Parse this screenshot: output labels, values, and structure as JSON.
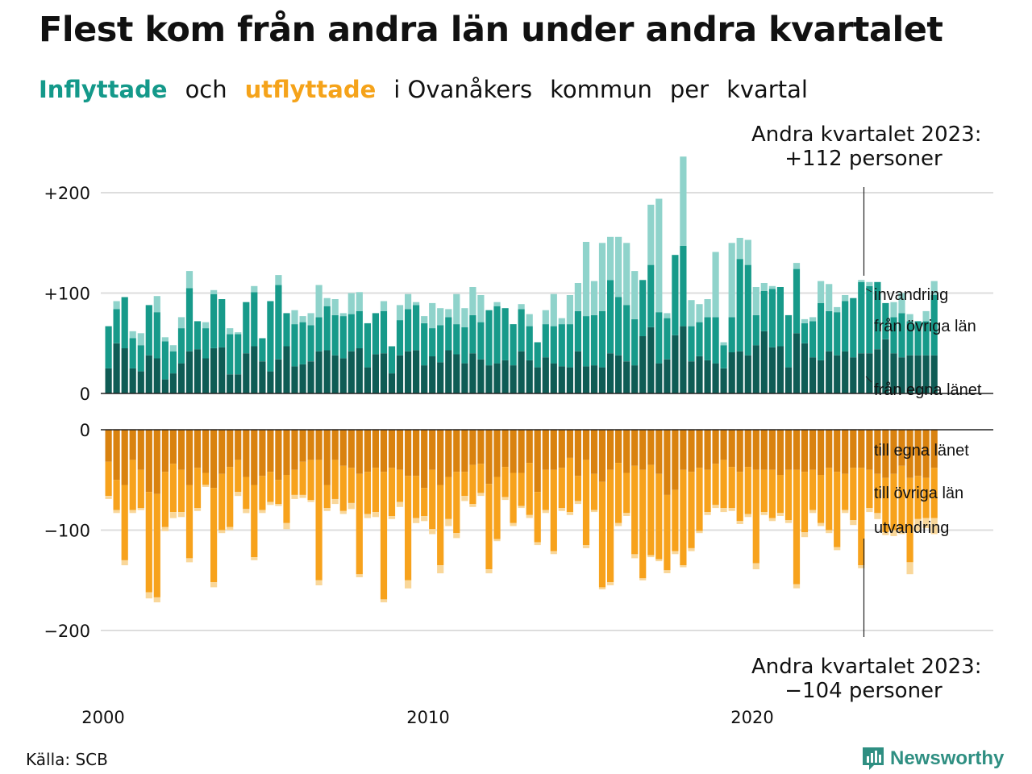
{
  "title": "Flest kom från andra län under andra kvartalet",
  "subtitle": {
    "part1": "Inflyttade",
    "part2": "och",
    "part3": "utflyttade",
    "part4": "i Ovanåkers",
    "part5": "kommun",
    "part6": "per",
    "part7": "kvartal"
  },
  "callout_top": {
    "line1": "Andra kvartalet 2023:",
    "line2": "+112 personer"
  },
  "callout_bottom": {
    "line1": "Andra kvartalet 2023:",
    "line2": "−104 personer"
  },
  "source": "Källa: SCB",
  "logo": {
    "text": "Newsworthy",
    "icon": "bar-chart-logo-icon"
  },
  "colors": {
    "in_local": "#0f5c55",
    "in_other": "#179a8a",
    "in_abroad": "#8fd3cb",
    "out_local": "#d9820f",
    "out_other": "#f7a21c",
    "out_abroad": "#f9d79a",
    "title_in": "#14998a",
    "title_out": "#f5a31a"
  },
  "chart_data": {
    "type": "bar",
    "stacked": true,
    "x_start": "2000 Q1",
    "x_end": "2023 Q2",
    "x_tick_labels": [
      "2000",
      "2010",
      "2020"
    ],
    "upper_panel": {
      "ylim": [
        0,
        210
      ],
      "y_tick_labels": [
        "0",
        "+100",
        "+200"
      ],
      "series_labels": [
        "invandring",
        "från övriga län",
        "från egna länet"
      ],
      "from_own_county": [
        25,
        50,
        45,
        25,
        22,
        38,
        35,
        14,
        20,
        30,
        42,
        44,
        35,
        45,
        46,
        19,
        19,
        40,
        47,
        32,
        22,
        34,
        47,
        27,
        29,
        32,
        42,
        43,
        38,
        35,
        42,
        45,
        26,
        39,
        40,
        20,
        38,
        42,
        43,
        28,
        37,
        31,
        43,
        39,
        30,
        40,
        34,
        28,
        30,
        33,
        28,
        42,
        33,
        26,
        36,
        30,
        27,
        26,
        42,
        27,
        28,
        26,
        40,
        38,
        32,
        28,
        57,
        66,
        30,
        34,
        58,
        67,
        32,
        37,
        33,
        30,
        25,
        41,
        42,
        38,
        48,
        62,
        46,
        47,
        26,
        60,
        50,
        36,
        33,
        42,
        38,
        42,
        36,
        40,
        40,
        44,
        54,
        40,
        36,
        38,
        38,
        38,
        38
      ],
      "from_other_counties": [
        42,
        34,
        51,
        30,
        26,
        50,
        46,
        38,
        22,
        35,
        63,
        28,
        30,
        54,
        48,
        40,
        40,
        51,
        54,
        23,
        70,
        74,
        33,
        42,
        42,
        36,
        34,
        44,
        40,
        42,
        37,
        37,
        44,
        41,
        42,
        27,
        35,
        42,
        45,
        42,
        28,
        37,
        33,
        30,
        36,
        38,
        37,
        55,
        57,
        52,
        41,
        42,
        34,
        25,
        33,
        37,
        42,
        43,
        40,
        50,
        50,
        56,
        73,
        58,
        56,
        46,
        56,
        62,
        51,
        41,
        80,
        80,
        35,
        34,
        43,
        46,
        23,
        35,
        92,
        90,
        30,
        40,
        58,
        59,
        52,
        64,
        20,
        36,
        57,
        40,
        43,
        50,
        59,
        71,
        67,
        67,
        36,
        36,
        44,
        34,
        34,
        34,
        60
      ],
      "immigration": [
        0,
        8,
        0,
        7,
        12,
        0,
        16,
        4,
        6,
        11,
        17,
        0,
        6,
        4,
        0,
        6,
        2,
        0,
        6,
        0,
        0,
        10,
        0,
        14,
        6,
        12,
        32,
        8,
        16,
        3,
        21,
        19,
        0,
        0,
        10,
        0,
        15,
        15,
        3,
        7,
        25,
        17,
        8,
        30,
        19,
        28,
        27,
        0,
        4,
        0,
        0,
        5,
        12,
        0,
        14,
        32,
        6,
        29,
        28,
        74,
        34,
        68,
        43,
        60,
        62,
        48,
        0,
        60,
        113,
        5,
        0,
        89,
        26,
        18,
        18,
        65,
        3,
        74,
        21,
        25,
        28,
        8,
        3,
        0,
        0,
        6,
        4,
        4,
        22,
        27,
        5,
        6,
        0,
        2,
        4,
        0,
        0,
        15,
        20,
        7,
        0,
        10,
        14
      ]
    },
    "lower_panel": {
      "ylim": [
        -210,
        0
      ],
      "y_tick_labels": [
        "0",
        "−100",
        "−200"
      ],
      "series_labels": [
        "till egna länet",
        "till övriga län",
        "utvandring"
      ],
      "to_own_county": [
        -32,
        -50,
        -55,
        -30,
        -40,
        -62,
        -64,
        -42,
        -34,
        -40,
        -55,
        -38,
        -43,
        -58,
        -44,
        -37,
        -30,
        -47,
        -55,
        -46,
        -42,
        -50,
        -45,
        -40,
        -32,
        -30,
        -30,
        -55,
        -30,
        -36,
        -38,
        -44,
        -42,
        -38,
        -42,
        -38,
        -40,
        -46,
        -46,
        -58,
        -40,
        -55,
        -47,
        -42,
        -42,
        -35,
        -34,
        -54,
        -47,
        -37,
        -43,
        -43,
        -33,
        -62,
        -40,
        -40,
        -38,
        -28,
        -46,
        -30,
        -44,
        -52,
        -40,
        -33,
        -43,
        -36,
        -40,
        -35,
        -44,
        -65,
        -60,
        -40,
        -42,
        -38,
        -40,
        -34,
        -30,
        -37,
        -42,
        -37,
        -40,
        -40,
        -40,
        -45,
        -40,
        -40,
        -42,
        -40,
        -45,
        -38,
        -42,
        -44,
        -38,
        -38,
        -40,
        -44,
        -48,
        -44,
        -36,
        -48,
        -46,
        -48,
        -38
      ],
      "to_other_counties": [
        -34,
        -30,
        -75,
        -50,
        -38,
        -100,
        -103,
        -55,
        -48,
        -42,
        -73,
        -40,
        -12,
        -94,
        -56,
        -60,
        -32,
        -32,
        -72,
        -34,
        -30,
        -24,
        -48,
        -25,
        -33,
        -40,
        -120,
        -23,
        -39,
        -45,
        -35,
        -100,
        -42,
        -44,
        -127,
        -48,
        -32,
        -104,
        -42,
        -28,
        -59,
        -80,
        -42,
        -61,
        -24,
        -39,
        -29,
        -85,
        -62,
        -30,
        -50,
        -33,
        -52,
        -50,
        -40,
        -81,
        -40,
        -54,
        -25,
        -85,
        -36,
        -105,
        -112,
        -60,
        -40,
        -88,
        -108,
        -90,
        -85,
        -75,
        -61,
        -95,
        -76,
        -63,
        -42,
        -41,
        -48,
        -41,
        -49,
        -47,
        -93,
        -42,
        -48,
        -38,
        -50,
        -114,
        -60,
        -40,
        -48,
        -62,
        -75,
        -36,
        -52,
        -97,
        -38,
        -39,
        -54,
        -56,
        -65,
        -84,
        -43,
        -40,
        -50
      ],
      "emigration": [
        -3,
        -3,
        -5,
        -3,
        -2,
        -6,
        -5,
        -4,
        -6,
        -5,
        -4,
        -3,
        -2,
        -5,
        -3,
        -3,
        -4,
        -4,
        -3,
        -3,
        -3,
        -2,
        -6,
        -4,
        -3,
        -2,
        -5,
        -3,
        -5,
        -3,
        -6,
        -3,
        -4,
        -5,
        -3,
        -3,
        -5,
        -8,
        -5,
        -5,
        -5,
        -8,
        -7,
        -5,
        -5,
        -3,
        -3,
        -4,
        -2,
        -3,
        -3,
        -2,
        -3,
        -3,
        -3,
        -3,
        -3,
        -3,
        -3,
        -3,
        -2,
        -2,
        -3,
        -3,
        -3,
        -4,
        -2,
        -2,
        -2,
        -3,
        -3,
        -2,
        -3,
        -2,
        -3,
        -3,
        -4,
        -3,
        -3,
        -3,
        -6,
        -3,
        -3,
        -3,
        -3,
        -4,
        -5,
        -3,
        -3,
        -3,
        -3,
        -3,
        -5,
        -3,
        -4,
        -6,
        -3,
        -6,
        -3,
        -12,
        -12,
        -10,
        -16
      ]
    }
  }
}
